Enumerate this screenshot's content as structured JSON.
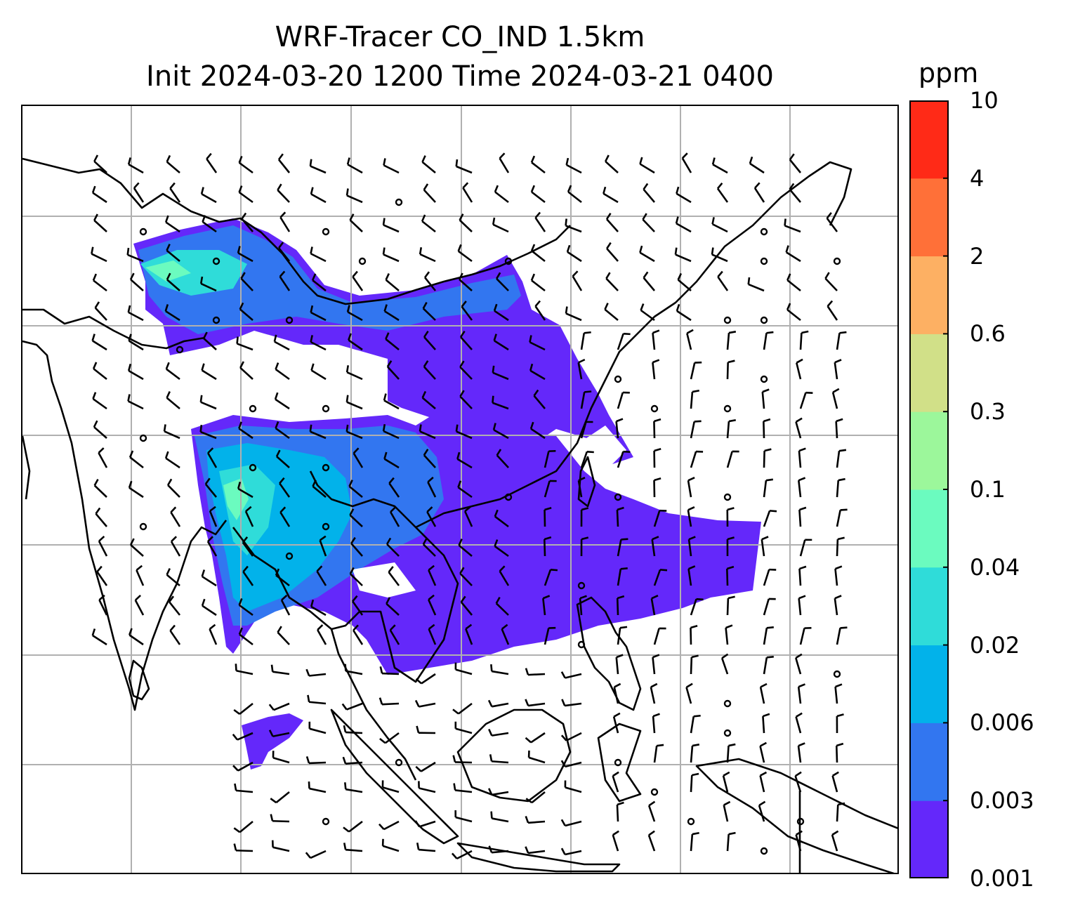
{
  "title": {
    "line1": "WRF-Tracer CO_IND 1.5km",
    "line2": "Init 2024-03-20 1200 Time 2024-03-21 0400"
  },
  "colorbar": {
    "unit": "ppm",
    "levels": [
      "0.001",
      "0.003",
      "0.006",
      "0.02",
      "0.04",
      "0.1",
      "0.3",
      "0.6",
      "2",
      "4",
      "10"
    ],
    "colors": [
      "#6428fa",
      "#3276f0",
      "#02b2ea",
      "#2fdcd9",
      "#6bfbbf",
      "#9cf79b",
      "#d1e088",
      "#fdb063",
      "#ff7038",
      "#ff2a17"
    ]
  },
  "map": {
    "gridlines": true,
    "grid_color": "#b0b0b0",
    "coastline_color": "#000000",
    "layers": [
      "tracer-concentration",
      "wind-barbs",
      "coastlines",
      "country-borders"
    ]
  }
}
